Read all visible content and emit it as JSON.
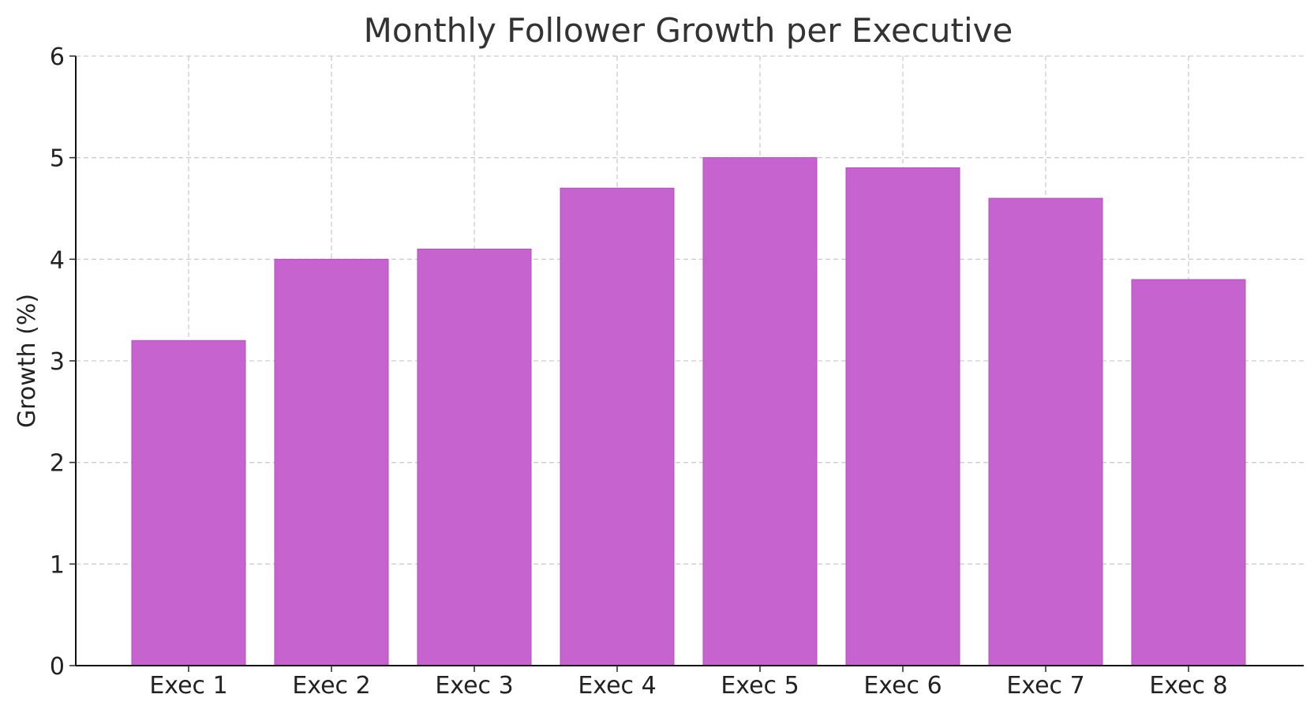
{
  "chart_data": {
    "type": "bar",
    "title": "Monthly Follower Growth per Executive",
    "xlabel": "",
    "ylabel": "Growth (%)",
    "categories": [
      "Exec 1",
      "Exec 2",
      "Exec 3",
      "Exec 4",
      "Exec 5",
      "Exec 6",
      "Exec 7",
      "Exec 8"
    ],
    "values": [
      3.2,
      4.0,
      4.1,
      4.7,
      5.0,
      4.9,
      4.6,
      3.8
    ],
    "ylim": [
      0,
      6
    ],
    "yticks": [
      0,
      1,
      2,
      3,
      4,
      5,
      6
    ],
    "grid": true,
    "bar_color": "#c663cf"
  }
}
